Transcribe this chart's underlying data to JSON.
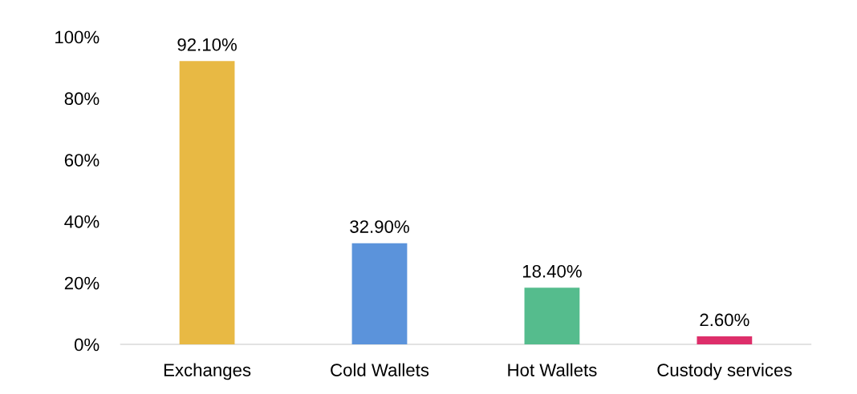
{
  "chart_data": {
    "type": "bar",
    "categories": [
      "Exchanges",
      "Cold Wallets",
      "Hot Wallets",
      "Custody services"
    ],
    "values": [
      92.1,
      32.9,
      18.4,
      2.6
    ],
    "colors": [
      "#e8b944",
      "#5b93db",
      "#55bc8d",
      "#dd2e6a"
    ],
    "value_labels": [
      "92.10%",
      "32.90%",
      "18.40%",
      "2.60%"
    ],
    "ylim": [
      0,
      100
    ],
    "yticks": [
      {
        "value": 0,
        "label": "0%"
      },
      {
        "value": 20,
        "label": "20%"
      },
      {
        "value": 40,
        "label": "40%"
      },
      {
        "value": 60,
        "label": "60%"
      },
      {
        "value": 80,
        "label": "80%"
      },
      {
        "value": 100,
        "label": "100%"
      }
    ]
  }
}
